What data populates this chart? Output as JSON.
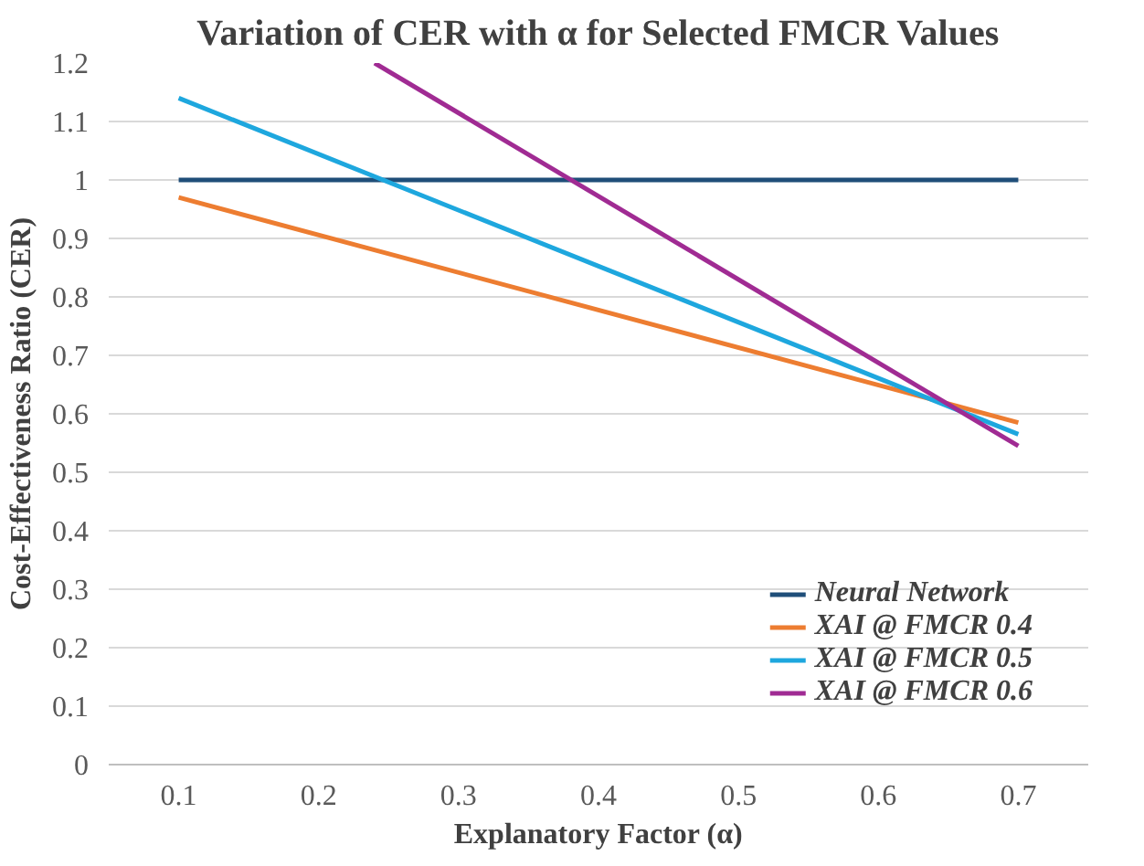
{
  "chart_data": {
    "type": "line",
    "title": "Variation of CER with α for Selected FMCR Values",
    "xlabel": "Explanatory Factor (α)",
    "ylabel": "Cost-Effectiveness Ratio (CER)",
    "x": [
      0.1,
      0.7
    ],
    "series": [
      {
        "name": "Neural Network",
        "color": "#1f4e79",
        "values": [
          1.0,
          1.0
        ]
      },
      {
        "name": "XAI @ FMCR 0.4",
        "color": "#ed7d31",
        "values": [
          0.97,
          0.585
        ]
      },
      {
        "name": "XAI @ FMCR 0.5",
        "color": "#1ea7de",
        "values": [
          1.14,
          0.565
        ]
      },
      {
        "name": "XAI @ FMCR 0.6",
        "color": "#a02b93",
        "x": [
          0.24,
          0.7
        ],
        "values": [
          1.2,
          0.545
        ]
      }
    ],
    "xlim": [
      0.05,
      0.75
    ],
    "xticks": [
      0.1,
      0.2,
      0.3,
      0.4,
      0.5,
      0.6,
      0.7
    ],
    "ylim": [
      0,
      1.2
    ],
    "yticks": [
      0,
      0.1,
      0.2,
      0.3,
      0.4,
      0.5,
      0.6,
      0.7,
      0.8,
      0.9,
      1,
      1.1,
      1.2
    ],
    "grid": "y",
    "legend": "bottom right",
    "marker": "none",
    "line_style": "solid"
  }
}
